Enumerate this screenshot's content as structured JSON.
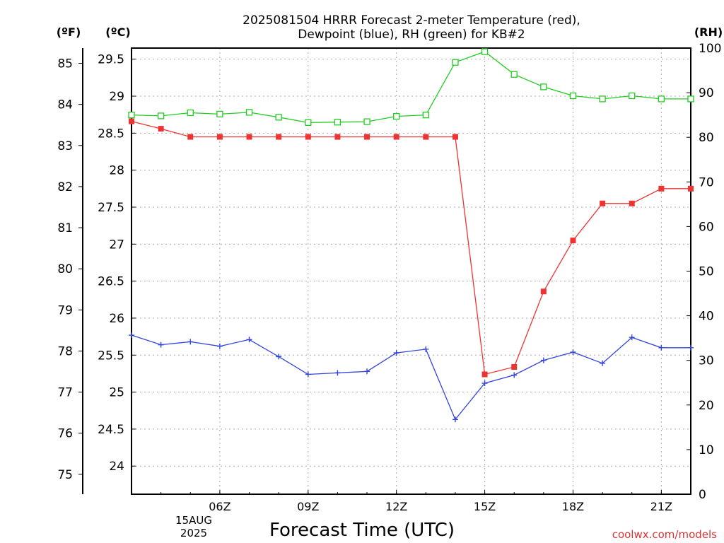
{
  "chart_data": {
    "type": "line",
    "title_line1": "2025081504 HRRR Forecast 2-meter Temperature (red),",
    "title_line2": "Dewpoint (blue), RH (green) for KB#2",
    "xlabel": "Forecast Time (UTC)",
    "credit": "coolwx.com/models",
    "date_label_1": "15AUG",
    "date_label_2": "2025",
    "axis_units": {
      "fahrenheit": "(ºF)",
      "celsius": "(ºC)",
      "rh": "(RH)"
    },
    "x": [
      "03Z",
      "04Z",
      "05Z",
      "06Z",
      "07Z",
      "08Z",
      "09Z",
      "10Z",
      "11Z",
      "12Z",
      "13Z",
      "14Z",
      "15Z",
      "16Z",
      "17Z",
      "18Z",
      "19Z",
      "20Z",
      "21Z",
      "22Z"
    ],
    "x_hours": [
      3,
      4,
      5,
      6,
      7,
      8,
      9,
      10,
      11,
      12,
      13,
      14,
      15,
      16,
      17,
      18,
      19,
      20,
      21,
      22
    ],
    "x_ticks": [
      "06Z",
      "09Z",
      "12Z",
      "15Z",
      "18Z",
      "21Z"
    ],
    "x_tick_hours": [
      6,
      9,
      12,
      15,
      18,
      21
    ],
    "xlim": [
      3,
      22
    ],
    "celsius_ylim": [
      23.62,
      29.65
    ],
    "celsius_ticks": [
      "24",
      "24.5",
      "25",
      "25.5",
      "26",
      "26.5",
      "27",
      "27.5",
      "28",
      "28.5",
      "29",
      "29.5"
    ],
    "fahrenheit_ticks": [
      "75",
      "76",
      "77",
      "78",
      "79",
      "80",
      "81",
      "82",
      "83",
      "84",
      "85"
    ],
    "rh_ylim": [
      0,
      100
    ],
    "rh_ticks": [
      "0",
      "10",
      "20",
      "30",
      "40",
      "50",
      "60",
      "70",
      "80",
      "90",
      "100"
    ],
    "grid": true,
    "series": [
      {
        "name": "Temperature",
        "axis": "celsius",
        "color": "#ee3333",
        "marker": "filled-square",
        "values": [
          28.66,
          28.56,
          28.45,
          28.45,
          28.45,
          28.45,
          28.45,
          28.45,
          28.45,
          28.45,
          28.45,
          28.45,
          25.24,
          25.34,
          26.36,
          27.05,
          27.55,
          27.55,
          27.75,
          27.75
        ]
      },
      {
        "name": "Dewpoint",
        "axis": "celsius",
        "color": "#3344dd",
        "marker": "plus",
        "values": [
          25.77,
          25.64,
          25.68,
          25.62,
          25.71,
          25.48,
          25.24,
          25.26,
          25.28,
          25.53,
          25.58,
          24.63,
          25.12,
          25.23,
          25.43,
          25.54,
          25.39,
          25.74,
          25.6,
          25.6
        ]
      },
      {
        "name": "RH",
        "axis": "rh",
        "color": "#22cc22",
        "marker": "open-square",
        "values": [
          85.0,
          84.8,
          85.5,
          85.2,
          85.6,
          84.5,
          83.3,
          83.4,
          83.5,
          84.7,
          85.0,
          96.8,
          99.2,
          94.1,
          91.3,
          89.3,
          88.6,
          89.3,
          88.6,
          88.6
        ]
      }
    ]
  }
}
